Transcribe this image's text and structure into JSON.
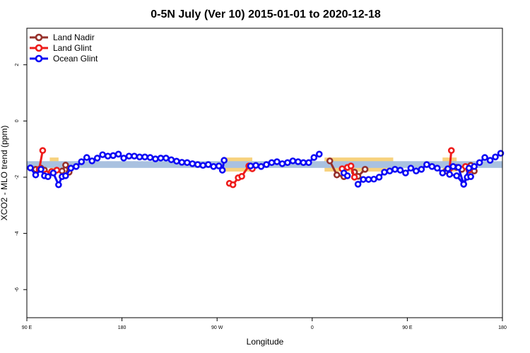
{
  "chart_data": {
    "type": "line",
    "title": "0-5N July (Ver 10)   2015-01-01 to 2020-12-18",
    "xlabel": "Longitude",
    "ylabel": "XCO2 - MLO trend (ppm)",
    "xlim": [
      -90,
      180
    ],
    "ylim": [
      -7,
      3.3
    ],
    "x_ticks": [
      {
        "value": -90,
        "label": "90 E"
      },
      {
        "value": -36,
        "label": "180"
      },
      {
        "value": 18,
        "label": "90 W"
      },
      {
        "value": 72,
        "label": "0"
      },
      {
        "value": 126,
        "label": "90 E"
      },
      {
        "value": 180,
        "label": "180"
      }
    ],
    "y_ticks": [
      -6,
      -4,
      -2,
      0,
      2
    ],
    "grid": false,
    "legend_position": "top-left",
    "band": {
      "y_low": -1.67,
      "y_high": -1.43,
      "color": "#a9c1e0"
    },
    "highlights": [
      {
        "x_start": -77,
        "x_end": -72,
        "color": "#f7d27e"
      },
      {
        "x_start": 22,
        "x_end": 38,
        "color": "#f7d27e"
      },
      {
        "x_start": 79,
        "x_end": 118,
        "color": "#f7d27e"
      },
      {
        "x_start": 146,
        "x_end": 154,
        "color": "#f7d27e"
      }
    ],
    "series": [
      {
        "name": "Land Nadir",
        "color": "#96312b",
        "segments": [
          {
            "x": [
              -85,
              -82,
              -80
            ],
            "y": [
              -1.72,
              -1.68,
              -1.75
            ]
          },
          {
            "x": [
              -70,
              -68,
              -66
            ],
            "y": [
              -1.78,
              -1.57,
              -1.82
            ]
          },
          {
            "x": [
              82,
              86,
              90
            ],
            "y": [
              -1.42,
              -1.92,
              -1.98
            ]
          },
          {
            "x": [
              96,
              98,
              102
            ],
            "y": [
              -1.82,
              -1.97,
              -1.72
            ]
          },
          {
            "x": [
              148,
              154,
              157
            ],
            "y": [
              -1.78,
              -1.65,
              -1.72
            ]
          },
          {
            "x": [
              162,
              164
            ],
            "y": [
              -1.58,
              -1.78
            ]
          }
        ]
      },
      {
        "name": "Land Glint",
        "color": "#ee1c1b",
        "segments": [
          {
            "x": [
              -83,
              -81
            ],
            "y": [
              -1.72,
              -1.05
            ]
          },
          {
            "x": [
              -79,
              -76,
              -73
            ],
            "y": [
              -1.88,
              -1.8,
              -1.75
            ]
          },
          {
            "x": [
              25,
              27,
              30,
              32,
              36,
              38
            ],
            "y": [
              -2.22,
              -2.27,
              -2.02,
              -1.97,
              -1.6,
              -1.7
            ]
          },
          {
            "x": [
              89,
              92,
              94,
              96
            ],
            "y": [
              -1.7,
              -1.65,
              -1.6,
              -2.0
            ]
          },
          {
            "x": [
              150,
              151
            ],
            "y": [
              -1.7,
              -1.05
            ]
          },
          {
            "x": [
              159,
              161
            ],
            "y": [
              -1.62,
              -1.75
            ]
          }
        ]
      },
      {
        "name": "Ocean Glint",
        "color": "#0c08f5",
        "segments": [
          {
            "x": [
              -88,
              -85,
              -82,
              -80,
              -78,
              -75,
              -72,
              -70,
              -68,
              -65,
              -62,
              -59,
              -56,
              -53,
              -50,
              -47,
              -44,
              -41,
              -38,
              -35,
              -32,
              -29,
              -26,
              -23,
              -20,
              -17,
              -14,
              -11,
              -8,
              -5,
              -2,
              1,
              4,
              7,
              10,
              13,
              16,
              19
            ],
            "y": [
              -1.67,
              -1.92,
              -1.72,
              -1.95,
              -1.98,
              -1.85,
              -2.27,
              -1.98,
              -1.95,
              -1.68,
              -1.62,
              -1.45,
              -1.3,
              -1.42,
              -1.32,
              -1.2,
              -1.25,
              -1.23,
              -1.18,
              -1.32,
              -1.25,
              -1.25,
              -1.28,
              -1.28,
              -1.3,
              -1.35,
              -1.32,
              -1.32,
              -1.38,
              -1.43,
              -1.47,
              -1.48,
              -1.52,
              -1.55,
              -1.58,
              -1.55,
              -1.62,
              -1.6
            ]
          },
          {
            "x": [
              21,
              22
            ],
            "y": [
              -1.75,
              -1.4
            ]
          },
          {
            "x": [
              37,
              40,
              43,
              46,
              49,
              52,
              55,
              58,
              61,
              64,
              67,
              70,
              73,
              76
            ],
            "y": [
              -1.6,
              -1.58,
              -1.62,
              -1.55,
              -1.48,
              -1.45,
              -1.52,
              -1.48,
              -1.42,
              -1.45,
              -1.48,
              -1.48,
              -1.3,
              -1.18
            ]
          },
          {
            "x": [
              90,
              92
            ],
            "y": [
              -1.85,
              -1.95
            ]
          },
          {
            "x": [
              98,
              101,
              104,
              107,
              110,
              113,
              116,
              119,
              122,
              125,
              128,
              131,
              134,
              137,
              140,
              143,
              146,
              149,
              152,
              155,
              158,
              161,
              164,
              167,
              170,
              173,
              176,
              179
            ],
            "y": [
              -2.25,
              -2.08,
              -2.08,
              -2.07,
              -2.0,
              -1.82,
              -1.78,
              -1.72,
              -1.75,
              -1.85,
              -1.68,
              -1.78,
              -1.72,
              -1.55,
              -1.62,
              -1.68,
              -1.85,
              -1.7,
              -1.62,
              -1.65,
              -2.25,
              -1.68,
              -1.62,
              -1.48,
              -1.3,
              -1.4,
              -1.28,
              -1.15
            ]
          },
          {
            "x": [
              150,
              154,
              158,
              160,
              162
            ],
            "y": [
              -1.9,
              -1.95,
              -2.25,
              -2.0,
              -1.98
            ]
          }
        ]
      }
    ]
  }
}
